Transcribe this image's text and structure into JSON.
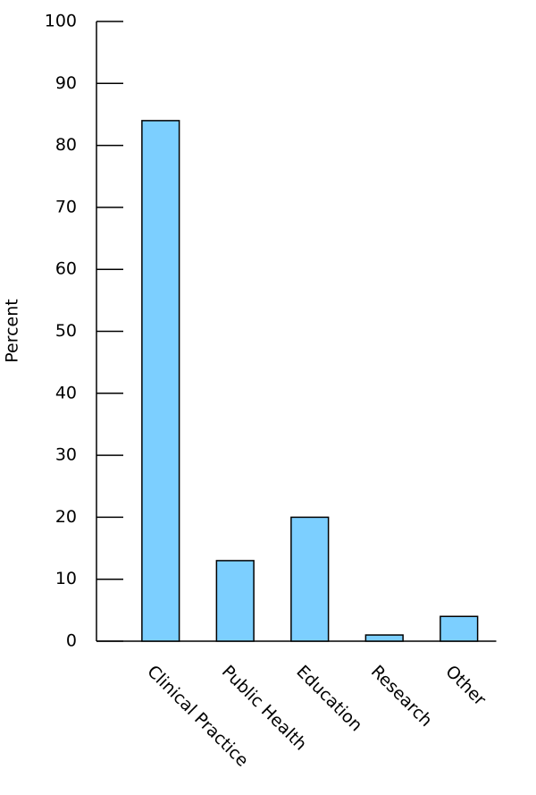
{
  "chart_data": {
    "type": "bar",
    "y_label": "Percent",
    "categories": [
      "Clinical Practice",
      "Public Health",
      "Education",
      "Research",
      "Other"
    ],
    "values": [
      84,
      13,
      20,
      1,
      4
    ],
    "color": "#7ccfff",
    "ylim": [
      0,
      100
    ],
    "yticks": [
      0,
      10,
      20,
      30,
      40,
      50,
      60,
      70,
      80,
      90,
      100
    ],
    "grid": false
  }
}
